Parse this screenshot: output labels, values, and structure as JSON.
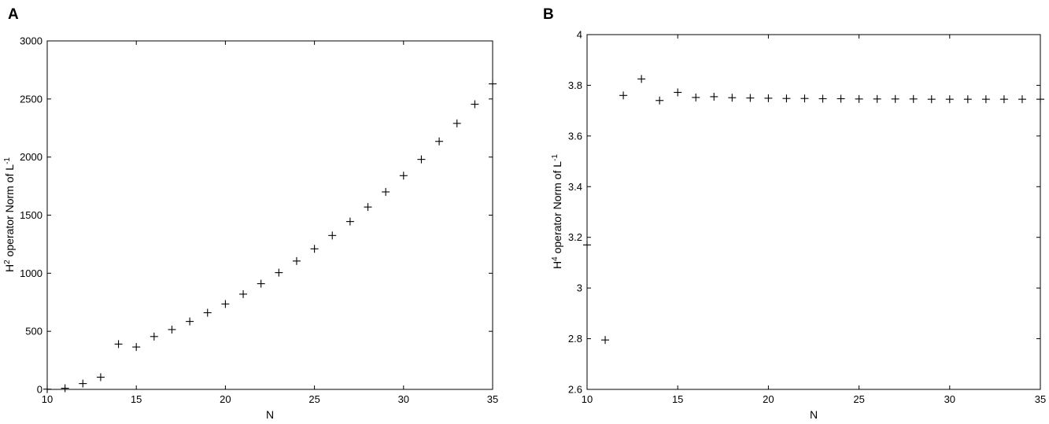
{
  "chart_data": [
    {
      "type": "scatter",
      "panel_label": "A",
      "xlabel": "N",
      "ylabel_parts": {
        "base": "H",
        "sup": "2",
        "mid": " operator Norm of L",
        "sup2": "-1"
      },
      "xlim": [
        10,
        35
      ],
      "ylim": [
        0,
        3000
      ],
      "xticks": [
        10,
        15,
        20,
        25,
        30,
        35
      ],
      "yticks": [
        0,
        500,
        1000,
        1500,
        2000,
        2500,
        3000
      ],
      "marker": "plus",
      "grid": false,
      "x": [
        10,
        11,
        12,
        13,
        14,
        15,
        16,
        17,
        18,
        19,
        20,
        21,
        22,
        23,
        24,
        25,
        26,
        27,
        28,
        29,
        30,
        31,
        32,
        33,
        34,
        35
      ],
      "y": [
        2,
        10,
        50,
        105,
        390,
        365,
        455,
        515,
        585,
        660,
        735,
        820,
        910,
        1005,
        1105,
        1210,
        1325,
        1445,
        1570,
        1700,
        1840,
        1980,
        2135,
        2290,
        2455,
        2630
      ]
    },
    {
      "type": "scatter",
      "panel_label": "B",
      "xlabel": "N",
      "ylabel_parts": {
        "base": "H",
        "sup": "4",
        "mid": " operator Norm of L",
        "sup2": "-1"
      },
      "xlim": [
        10,
        35
      ],
      "ylim": [
        2.6,
        4
      ],
      "xticks": [
        10,
        15,
        20,
        25,
        30,
        35
      ],
      "yticks": [
        2.6,
        2.8,
        3,
        3.2,
        3.4,
        3.6,
        3.8,
        4
      ],
      "marker": "plus",
      "grid": false,
      "x": [
        10,
        11,
        12,
        13,
        14,
        15,
        16,
        17,
        18,
        19,
        20,
        21,
        22,
        23,
        24,
        25,
        26,
        27,
        28,
        29,
        30,
        31,
        32,
        33,
        34,
        35
      ],
      "y": [
        3.17,
        2.795,
        3.76,
        3.825,
        3.74,
        3.772,
        3.752,
        3.755,
        3.751,
        3.75,
        3.749,
        3.748,
        3.748,
        3.747,
        3.747,
        3.746,
        3.746,
        3.746,
        3.746,
        3.745,
        3.745,
        3.745,
        3.745,
        3.745,
        3.745,
        3.745
      ]
    }
  ]
}
